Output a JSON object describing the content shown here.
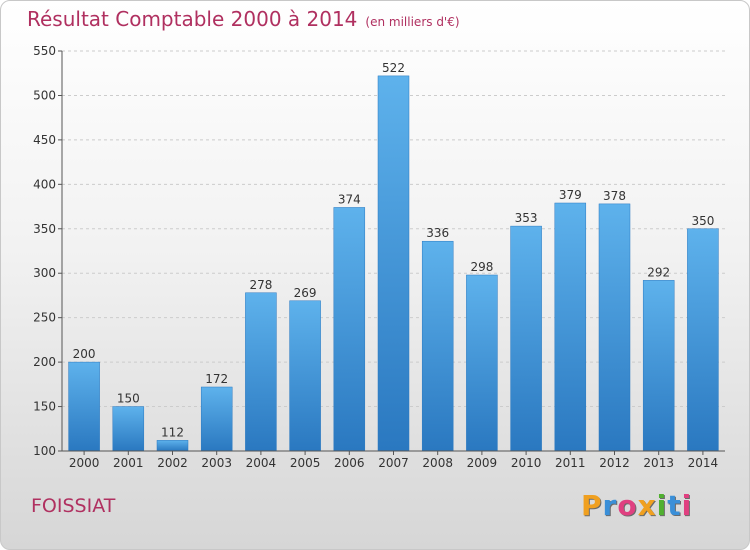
{
  "header": {
    "title": "Résultat Comptable 2000 à 2014",
    "unit": "(en milliers d'€)"
  },
  "commune": "FOISSIAT",
  "logo": {
    "text": "Proxiti",
    "colors": [
      "#f0a020",
      "#3a8fd8",
      "#e04080",
      "#f0a020",
      "#50b030",
      "#3a8fd8",
      "#e04080"
    ]
  },
  "chart_data": {
    "type": "bar",
    "categories": [
      "2000",
      "2001",
      "2002",
      "2003",
      "2004",
      "2005",
      "2006",
      "2007",
      "2008",
      "2009",
      "2010",
      "2011",
      "2012",
      "2013",
      "2014"
    ],
    "values": [
      200,
      150,
      112,
      172,
      278,
      269,
      374,
      522,
      336,
      298,
      353,
      379,
      378,
      292,
      350
    ],
    "ylim": [
      100,
      550
    ],
    "yticks": [
      100,
      150,
      200,
      250,
      300,
      350,
      400,
      450,
      500,
      550
    ],
    "grid": true,
    "bar_color": "#4aa0e0"
  }
}
